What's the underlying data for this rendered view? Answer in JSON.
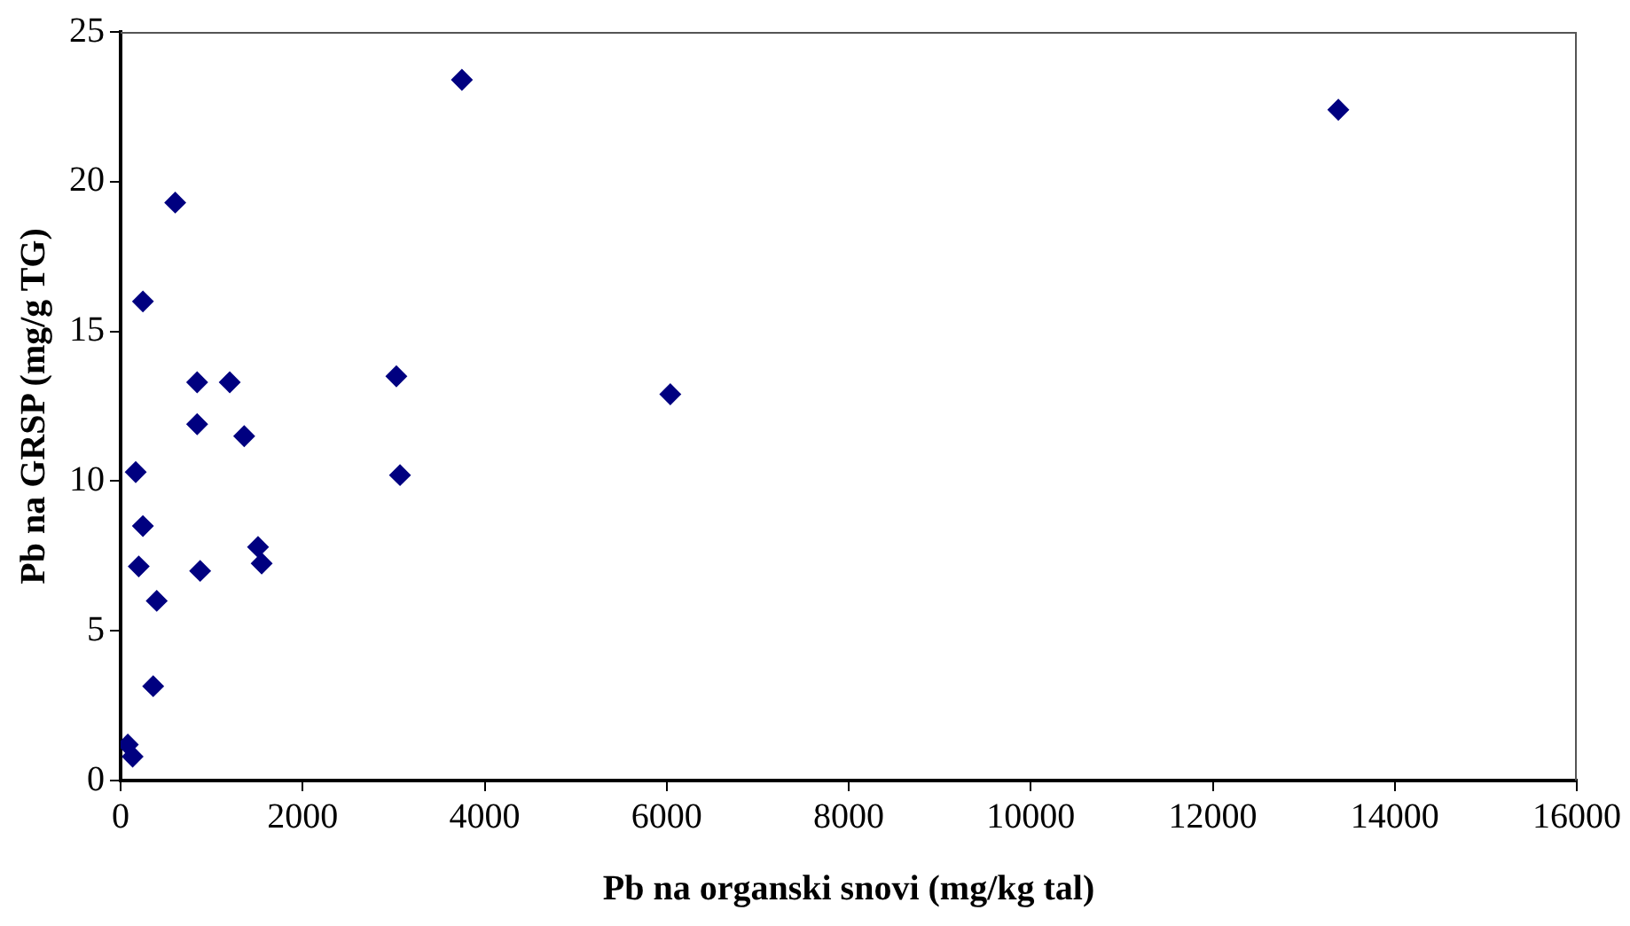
{
  "chart_data": {
    "type": "scatter",
    "xlabel": "Pb na organski snovi (mg/kg tal)",
    "ylabel": "Pb na GRSP (mg/g TG)",
    "x": [
      600,
      245,
      841,
      1199,
      3030,
      841,
      1358,
      166,
      3070,
      245,
      1510,
      1550,
      199,
      874,
      397,
      358,
      79,
      132,
      3750,
      13380,
      6040
    ],
    "series": [
      {
        "color": "#000080",
        "values": [
          19.3,
          16.0,
          13.3,
          13.3,
          13.5,
          11.9,
          11.5,
          10.3,
          10.2,
          8.5,
          7.8,
          7.25,
          7.15,
          7.0,
          6.0,
          3.15,
          1.2,
          0.8,
          23.4,
          22.4,
          12.9
        ]
      }
    ],
    "xlim": [
      0,
      16000
    ],
    "xticks": [
      0,
      2000,
      4000,
      6000,
      8000,
      10000,
      12000,
      14000,
      16000
    ],
    "ylim": [
      0,
      25
    ],
    "yticks": [
      0,
      5,
      10,
      15,
      20,
      25
    ],
    "grid": false,
    "legend": false,
    "marker": "diamond"
  }
}
